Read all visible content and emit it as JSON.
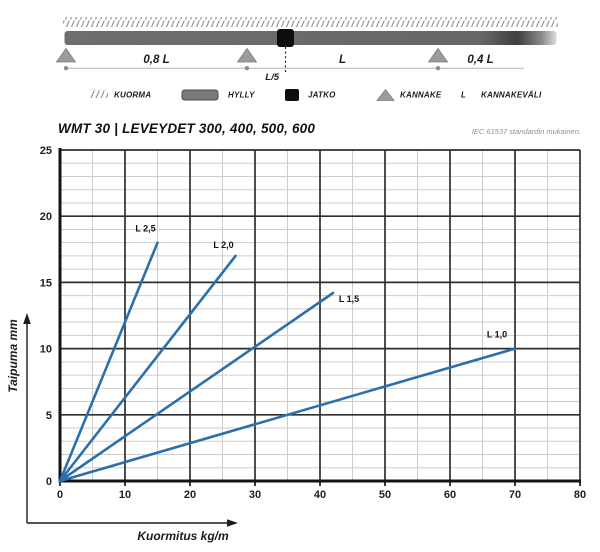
{
  "header": {
    "title": "WMT 30 | LEVEYDET 300, 400, 500, 600",
    "note": "IEC 61537 standardin mukainen."
  },
  "diagram": {
    "spans": {
      "left": "0,8 L",
      "mid": "L",
      "right": "0,4 L",
      "joint": "L/5"
    },
    "legend": [
      {
        "symbol": "hatch",
        "label": "KUORMA"
      },
      {
        "symbol": "beam",
        "label": "HYLLY"
      },
      {
        "symbol": "joint",
        "label": "JATKO"
      },
      {
        "symbol": "triangle",
        "label": "KANNAKE"
      },
      {
        "symbol": "L",
        "label": "KANNAKEVÄLI"
      }
    ]
  },
  "chart_data": {
    "type": "line",
    "title": "",
    "xlabel": "Kuormitus kg/m",
    "ylabel": "Taipuma mm",
    "xlim": [
      0,
      80
    ],
    "ylim": [
      0,
      25
    ],
    "x_ticks": [
      0,
      10,
      20,
      30,
      40,
      50,
      60,
      70,
      80
    ],
    "y_ticks": [
      0,
      5,
      10,
      15,
      20,
      25
    ],
    "x_minor_step": 5,
    "y_minor_step": 1,
    "grid": true,
    "legend_position": "inline-labels",
    "series": [
      {
        "name": "L 2,5",
        "points": [
          [
            0,
            0
          ],
          [
            15,
            18
          ]
        ]
      },
      {
        "name": "L 2,0",
        "points": [
          [
            0,
            0
          ],
          [
            27,
            17
          ]
        ]
      },
      {
        "name": "L 1,5",
        "points": [
          [
            0,
            0
          ],
          [
            42,
            14.2
          ]
        ]
      },
      {
        "name": "L 1,0",
        "points": [
          [
            0,
            0
          ],
          [
            70,
            10
          ]
        ]
      }
    ]
  },
  "colors": {
    "line": "#2b6fad",
    "grid_major": "#2f2f2f",
    "grid_minor": "#cdcdcd",
    "axis": "#141414",
    "beam_gray": "#6e6e6e",
    "triangle_gray": "#9c9c9c",
    "joint_black": "#0d0d0d",
    "hatch_gray": "#8f8f8f"
  }
}
